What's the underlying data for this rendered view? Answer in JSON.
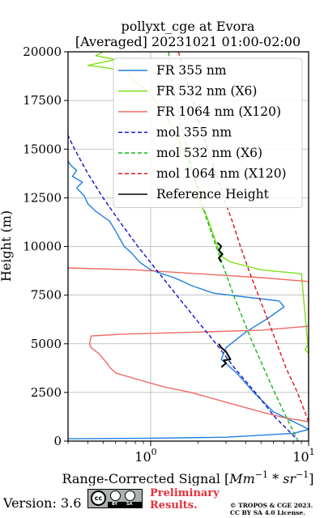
{
  "chart_data": {
    "type": "line",
    "title_line1": "pollyxt_cge at Evora",
    "title_line2": "[Averaged] 20231021 01:00-02:00",
    "xlabel_text": "Range-Corrected Signal [",
    "xlabel_unit_1": "Mm",
    "xlabel_exp_1": "−1",
    "xlabel_op": " * ",
    "xlabel_unit_2": "sr",
    "xlabel_exp_2": "−1",
    "xlabel_close": "]",
    "ylabel": "Height (m)",
    "x_scale": "log",
    "xlim": [
      0.3,
      10
    ],
    "ylim": [
      0,
      20000
    ],
    "grid": true,
    "legend_position": "upper-right",
    "x_ticks": [
      {
        "value": 1,
        "base": "10",
        "exp": "0"
      },
      {
        "value": 10,
        "base": "10",
        "exp": "1"
      }
    ],
    "y_ticks": [
      0,
      2500,
      5000,
      7500,
      10000,
      12500,
      15000,
      17500,
      20000
    ],
    "series": [
      {
        "name": "FR 355 nm",
        "color": "#1f7fe0",
        "style": "solid",
        "points": [
          [
            0.3,
            120
          ],
          [
            1,
            150
          ],
          [
            3,
            200
          ],
          [
            8,
            400
          ],
          [
            10,
            600
          ],
          [
            9,
            800
          ],
          [
            6,
            1500
          ],
          [
            4.5,
            2500
          ],
          [
            3.5,
            3500
          ],
          [
            2.8,
            4200
          ],
          [
            3,
            4800
          ],
          [
            4,
            5600
          ],
          [
            5.5,
            6300
          ],
          [
            7,
            6900
          ],
          [
            6.5,
            7200
          ],
          [
            4,
            7400
          ],
          [
            2.5,
            7600
          ],
          [
            1.8,
            8000
          ],
          [
            1.6,
            8200
          ],
          [
            1.4,
            8400
          ],
          [
            1.0,
            8800
          ],
          [
            0.85,
            9200
          ],
          [
            0.75,
            9700
          ],
          [
            0.68,
            10000
          ],
          [
            0.6,
            10800
          ],
          [
            0.55,
            11300
          ],
          [
            0.45,
            11800
          ],
          [
            0.4,
            12200
          ],
          [
            0.38,
            12600
          ],
          [
            0.34,
            13000
          ],
          [
            0.37,
            13300
          ],
          [
            0.32,
            13600
          ],
          [
            0.34,
            13900
          ],
          [
            0.31,
            14200
          ],
          [
            0.3,
            14400
          ]
        ]
      },
      {
        "name": "FR 532 nm (X6)",
        "color": "#7ee01a",
        "style": "solid",
        "points": [
          [
            10,
            5000
          ],
          [
            9.5,
            4700
          ],
          [
            10,
            4500
          ],
          [
            9,
            8600
          ],
          [
            5,
            8800
          ],
          [
            4,
            9000
          ],
          [
            3.2,
            9200
          ],
          [
            2.8,
            9500
          ],
          [
            2.6,
            10200
          ],
          [
            2.4,
            11000
          ],
          [
            2.2,
            11800
          ],
          [
            2.0,
            12200
          ],
          [
            2.0,
            13000
          ],
          [
            1.8,
            14000
          ],
          [
            1.6,
            15000
          ],
          [
            1.4,
            16000
          ],
          [
            1.2,
            17000
          ],
          [
            1.0,
            17800
          ],
          [
            0.8,
            18500
          ],
          [
            0.7,
            19000
          ],
          [
            0.5,
            19200
          ],
          [
            0.4,
            19300
          ],
          [
            0.6,
            19600
          ],
          [
            0.45,
            19800
          ],
          [
            0.5,
            20000
          ]
        ]
      },
      {
        "name": "FR 1064 nm (X120)",
        "color": "#f06a62",
        "style": "solid",
        "points": [
          [
            10,
            5900
          ],
          [
            5,
            5700
          ],
          [
            2,
            5600
          ],
          [
            0.7,
            5500
          ],
          [
            0.42,
            5400
          ],
          [
            0.41,
            5000
          ],
          [
            0.42,
            4800
          ],
          [
            0.47,
            4500
          ],
          [
            0.53,
            4000
          ],
          [
            0.55,
            3800
          ],
          [
            0.6,
            3500
          ],
          [
            0.8,
            3200
          ],
          [
            1.2,
            2800
          ],
          [
            1.8,
            2500
          ],
          [
            3,
            2000
          ],
          [
            5,
            1500
          ],
          [
            7,
            1200
          ],
          [
            10,
            1000
          ],
          [
            10,
            8200
          ],
          [
            5,
            8400
          ],
          [
            2,
            8600
          ],
          [
            0.8,
            8800
          ],
          [
            0.3,
            8900
          ]
        ]
      },
      {
        "name": "mol 355 nm",
        "color": "#1010cc",
        "style": "dashed",
        "points": [
          [
            8.2,
            200
          ],
          [
            6.1,
            1250
          ],
          [
            4.6,
            2500
          ],
          [
            3.4,
            3750
          ],
          [
            2.6,
            5000
          ],
          [
            1.94,
            6250
          ],
          [
            1.46,
            7500
          ],
          [
            1.1,
            8750
          ],
          [
            0.83,
            10000
          ],
          [
            0.64,
            11250
          ],
          [
            0.5,
            12500
          ],
          [
            0.4,
            13750
          ],
          [
            0.33,
            15000
          ],
          [
            0.3,
            15700
          ]
        ]
      },
      {
        "name": "mol 532 nm (X6)",
        "color": "#12b812",
        "style": "dashed",
        "points": [
          [
            8.6,
            0
          ],
          [
            7.2,
            1250
          ],
          [
            6.1,
            2500
          ],
          [
            5.2,
            3750
          ],
          [
            4.45,
            5000
          ],
          [
            3.85,
            6250
          ],
          [
            3.35,
            7500
          ],
          [
            2.95,
            8750
          ],
          [
            2.6,
            10000
          ],
          [
            2.3,
            11250
          ],
          [
            2.05,
            12500
          ],
          [
            1.85,
            13750
          ],
          [
            1.7,
            15000
          ],
          [
            1.55,
            16250
          ],
          [
            1.45,
            17500
          ],
          [
            1.35,
            18750
          ],
          [
            1.3,
            20000
          ]
        ]
      },
      {
        "name": "mol 1064 nm (X120)",
        "color": "#dd1414",
        "style": "dashed",
        "points": [
          [
            10,
            1000
          ],
          [
            8.5,
            2500
          ],
          [
            7.2,
            3750
          ],
          [
            6.3,
            5000
          ],
          [
            5.5,
            6250
          ],
          [
            4.8,
            7500
          ],
          [
            4.2,
            8750
          ],
          [
            3.7,
            10000
          ],
          [
            3.3,
            11250
          ],
          [
            2.9,
            12500
          ],
          [
            2.6,
            13750
          ],
          [
            2.3,
            15000
          ],
          [
            2.05,
            16250
          ],
          [
            1.85,
            17500
          ],
          [
            1.65,
            18750
          ],
          [
            1.5,
            20000
          ]
        ]
      },
      {
        "name": "Reference Height",
        "color": "#000000",
        "style": "solid",
        "segments": [
          [
            [
              2.8,
              3800
            ],
            [
              3.0,
              4000
            ],
            [
              2.9,
              4150
            ],
            [
              3.2,
              4200
            ],
            [
              3.1,
              4400
            ],
            [
              3.0,
              4600
            ],
            [
              2.8,
              4800
            ],
            [
              2.7,
              5000
            ]
          ],
          [
            [
              2.8,
              9200
            ],
            [
              2.7,
              9400
            ],
            [
              2.85,
              9600
            ],
            [
              2.7,
              9800
            ],
            [
              2.8,
              10000
            ],
            [
              2.65,
              10200
            ]
          ]
        ]
      }
    ]
  },
  "footer": {
    "version": "Version: 3.6",
    "cc_label": "cc",
    "cc_by": "BY",
    "cc_sa": "SA",
    "preliminary_line1": "Preliminary",
    "preliminary_line2": "Results.",
    "copyright_line1": "© TROPOS & CGE 2023.",
    "copyright_line2": "CC BY SA 4.0 License."
  }
}
